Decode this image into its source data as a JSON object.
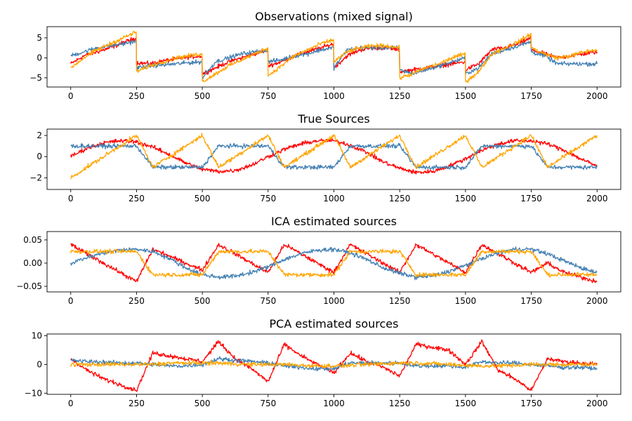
{
  "chart_data": [
    {
      "type": "line",
      "title": "Observations (mixed signal)",
      "xlim": [
        -90,
        2090
      ],
      "ylim": [
        -7.3,
        7.8
      ],
      "xticks": [
        0,
        250,
        500,
        750,
        1000,
        1250,
        1500,
        1750,
        2000
      ],
      "xtick_labels": [
        "0",
        "250",
        "500",
        "750",
        "1000",
        "1250",
        "1500",
        "1750",
        "2000"
      ],
      "yticks": [
        -5,
        0,
        5
      ],
      "ytick_labels": [
        "−5",
        "0",
        "5"
      ],
      "x": [
        0,
        50,
        100,
        150,
        200,
        249,
        250,
        300,
        350,
        400,
        450,
        499,
        500,
        550,
        600,
        650,
        700,
        749,
        750,
        800,
        850,
        900,
        950,
        999,
        1000,
        1050,
        1100,
        1150,
        1200,
        1249,
        1250,
        1300,
        1350,
        1400,
        1450,
        1499,
        1500,
        1550,
        1600,
        1650,
        1700,
        1749,
        1750,
        1800,
        1850,
        1900,
        1950,
        2000
      ],
      "series": [
        {
          "color": "#ff0000",
          "values": [
            -1.5,
            0.5,
            1.5,
            2.5,
            3.8,
            5.0,
            -1.2,
            -1.5,
            -0.8,
            -0.3,
            0.2,
            0.5,
            -4.0,
            -2.5,
            -1.0,
            0.0,
            1.0,
            2.0,
            -2.0,
            -1.0,
            0.5,
            1.5,
            2.5,
            3.5,
            -2.5,
            0.5,
            2.0,
            2.5,
            2.5,
            2.0,
            -3.5,
            -3.0,
            -2.5,
            -2.0,
            -1.5,
            -1.0,
            -3.0,
            -1.5,
            2.0,
            2.5,
            3.5,
            5.0,
            2.0,
            1.0,
            0.0,
            0.5,
            1.0,
            1.5
          ]
        },
        {
          "color": "#4682b4",
          "values": [
            0.5,
            1.5,
            2.5,
            3.0,
            3.5,
            4.2,
            -2.5,
            -2.0,
            -1.8,
            -1.5,
            -1.2,
            -1.0,
            -5.0,
            -1.0,
            0.0,
            1.0,
            1.5,
            2.0,
            -1.0,
            -0.5,
            0.5,
            1.0,
            2.0,
            2.5,
            -2.5,
            2.0,
            2.5,
            2.5,
            2.5,
            2.5,
            -3.0,
            -4.0,
            -3.0,
            -2.0,
            -1.0,
            0.0,
            -4.0,
            -2.5,
            1.0,
            2.0,
            3.0,
            4.0,
            1.5,
            0.5,
            -1.5,
            -1.5,
            -1.5,
            -1.5
          ]
        },
        {
          "color": "#ffa500",
          "values": [
            -2.5,
            0.0,
            2.0,
            3.5,
            5.0,
            6.5,
            -3.5,
            -2.0,
            -1.0,
            0.0,
            0.5,
            1.0,
            -6.0,
            -4.0,
            -2.0,
            -0.5,
            1.0,
            2.5,
            -4.5,
            -2.0,
            0.5,
            2.0,
            3.5,
            4.5,
            -1.0,
            1.5,
            2.5,
            3.0,
            3.0,
            2.5,
            -5.0,
            -4.0,
            -2.5,
            -1.5,
            0.0,
            1.0,
            -6.0,
            -3.5,
            1.0,
            2.5,
            4.0,
            6.0,
            2.5,
            1.0,
            0.0,
            0.5,
            1.5,
            2.0
          ]
        }
      ]
    },
    {
      "type": "line",
      "title": "True Sources",
      "xlim": [
        -90,
        2090
      ],
      "ylim": [
        -3.1,
        2.6
      ],
      "xticks": [
        0,
        250,
        500,
        750,
        1000,
        1250,
        1500,
        1750,
        2000
      ],
      "xtick_labels": [
        "0",
        "250",
        "500",
        "750",
        "1000",
        "1250",
        "1500",
        "1750",
        "2000"
      ],
      "yticks": [
        -2,
        0,
        2
      ],
      "ytick_labels": [
        "−2",
        "0",
        "2"
      ],
      "x": [
        0,
        62,
        125,
        187,
        250,
        312,
        375,
        437,
        500,
        562,
        625,
        687,
        750,
        812,
        875,
        937,
        1000,
        1062,
        1125,
        1187,
        1250,
        1312,
        1375,
        1437,
        1500,
        1562,
        1625,
        1687,
        1750,
        1812,
        1875,
        1937,
        2000
      ],
      "series": [
        {
          "color": "#ff0000",
          "values": [
            0.0,
            0.8,
            1.3,
            1.5,
            1.4,
            0.9,
            0.2,
            -0.6,
            -1.2,
            -1.4,
            -1.3,
            -0.8,
            0.0,
            0.7,
            1.2,
            1.5,
            1.5,
            1.1,
            0.4,
            -0.5,
            -1.1,
            -1.5,
            -1.4,
            -0.9,
            -0.2,
            0.6,
            1.2,
            1.5,
            1.5,
            1.2,
            0.6,
            -0.2,
            -0.9
          ]
        },
        {
          "color": "#4682b4",
          "values": [
            1.0,
            1.0,
            1.0,
            1.0,
            1.0,
            -1.0,
            -1.0,
            -1.0,
            -1.0,
            1.0,
            1.0,
            1.0,
            1.0,
            -1.0,
            -1.0,
            -1.0,
            -1.0,
            1.0,
            1.0,
            1.0,
            1.0,
            -1.0,
            -1.0,
            -1.0,
            -1.0,
            1.0,
            1.0,
            1.0,
            1.0,
            -1.0,
            -1.0,
            -1.0,
            -1.0
          ]
        },
        {
          "color": "#ffa500",
          "values": [
            -2.0,
            -1.0,
            0.0,
            1.0,
            2.0,
            -1.0,
            0.0,
            1.0,
            2.0,
            -1.0,
            0.0,
            1.0,
            2.0,
            -1.0,
            0.0,
            1.0,
            2.0,
            -1.0,
            0.0,
            1.0,
            2.0,
            -1.0,
            0.0,
            1.0,
            2.0,
            -1.0,
            0.0,
            1.0,
            2.0,
            -1.0,
            0.0,
            1.0,
            2.0
          ]
        }
      ]
    },
    {
      "type": "line",
      "title": "ICA estimated sources",
      "xlim": [
        -90,
        2090
      ],
      "ylim": [
        -0.062,
        0.068
      ],
      "xticks": [
        0,
        250,
        500,
        750,
        1000,
        1250,
        1500,
        1750,
        2000
      ],
      "xtick_labels": [
        "0",
        "250",
        "500",
        "750",
        "1000",
        "1250",
        "1500",
        "1750",
        "2000"
      ],
      "yticks": [
        -0.05,
        0.0,
        0.05
      ],
      "ytick_labels": [
        "−0.05",
        "0.00",
        "0.05"
      ],
      "x": [
        0,
        62,
        125,
        187,
        250,
        312,
        375,
        437,
        500,
        562,
        625,
        687,
        750,
        812,
        875,
        937,
        1000,
        1062,
        1125,
        1187,
        1250,
        1312,
        1375,
        1437,
        1500,
        1562,
        1625,
        1687,
        1750,
        1812,
        1875,
        1937,
        2000
      ],
      "series": [
        {
          "color": "#ff0000",
          "values": [
            0.04,
            0.02,
            0.0,
            -0.02,
            -0.04,
            0.03,
            0.015,
            0.0,
            -0.015,
            0.04,
            0.02,
            0.0,
            -0.02,
            0.04,
            0.02,
            0.0,
            -0.02,
            0.04,
            0.02,
            0.0,
            -0.02,
            0.04,
            0.02,
            0.0,
            -0.02,
            0.04,
            0.02,
            0.0,
            -0.02,
            0.0,
            -0.02,
            -0.03,
            -0.04
          ]
        },
        {
          "color": "#4682b4",
          "values": [
            0.0,
            0.012,
            0.022,
            0.028,
            0.03,
            0.025,
            0.01,
            -0.01,
            -0.025,
            -0.03,
            -0.028,
            -0.02,
            -0.008,
            0.008,
            0.02,
            0.028,
            0.03,
            0.022,
            0.008,
            -0.01,
            -0.022,
            -0.03,
            -0.028,
            -0.018,
            -0.005,
            0.01,
            0.022,
            0.03,
            0.03,
            0.02,
            0.005,
            -0.01,
            -0.02
          ]
        },
        {
          "color": "#ffa500",
          "values": [
            0.025,
            0.025,
            0.025,
            0.025,
            0.025,
            -0.025,
            -0.025,
            -0.025,
            -0.025,
            0.025,
            0.025,
            0.025,
            0.025,
            -0.025,
            -0.025,
            -0.025,
            -0.025,
            0.025,
            0.025,
            0.025,
            0.025,
            -0.025,
            -0.025,
            -0.025,
            -0.025,
            0.025,
            0.025,
            0.025,
            0.025,
            -0.025,
            -0.025,
            -0.025,
            -0.025
          ]
        }
      ]
    },
    {
      "type": "line",
      "title": "PCA estimated sources",
      "xlim": [
        -90,
        2090
      ],
      "ylim": [
        -10.4,
        10.6
      ],
      "xticks": [
        0,
        250,
        500,
        750,
        1000,
        1250,
        1500,
        1750,
        2000
      ],
      "xtick_labels": [
        "0",
        "250",
        "500",
        "750",
        "1000",
        "1250",
        "1500",
        "1750",
        "2000"
      ],
      "yticks": [
        -10,
        0,
        10
      ],
      "ytick_labels": [
        "−10",
        "0",
        "10"
      ],
      "x": [
        0,
        62,
        125,
        187,
        250,
        312,
        375,
        437,
        500,
        562,
        625,
        687,
        750,
        812,
        875,
        937,
        1000,
        1062,
        1125,
        1187,
        1250,
        1312,
        1375,
        1437,
        1500,
        1562,
        1625,
        1687,
        1750,
        1812,
        1875,
        1937,
        2000
      ],
      "series": [
        {
          "color": "#ff0000",
          "values": [
            2.0,
            -2.0,
            -5.0,
            -7.0,
            -9.0,
            4.0,
            3.0,
            2.0,
            1.0,
            8.0,
            2.0,
            -1.5,
            -6.0,
            7.0,
            3.0,
            0.0,
            -3.0,
            4.0,
            1.0,
            -1.0,
            -4.0,
            7.0,
            6.0,
            5.0,
            0.0,
            8.0,
            -2.0,
            -5.0,
            -9.0,
            2.0,
            1.0,
            0.5,
            0.0
          ]
        },
        {
          "color": "#4682b4",
          "values": [
            1.5,
            1.0,
            0.8,
            0.5,
            0.5,
            0.0,
            -0.5,
            -0.5,
            0.0,
            2.0,
            1.5,
            1.0,
            0.5,
            -0.5,
            -1.0,
            -1.5,
            -1.5,
            0.5,
            0.5,
            0.5,
            0.5,
            -0.5,
            -0.5,
            -0.5,
            -1.0,
            1.0,
            0.5,
            0.5,
            0.0,
            -0.5,
            -1.0,
            -1.0,
            -1.5
          ]
        },
        {
          "color": "#ffa500",
          "values": [
            0.0,
            0.0,
            0.0,
            0.0,
            0.0,
            0.0,
            0.5,
            0.5,
            0.5,
            0.5,
            0.2,
            0.0,
            0.0,
            0.0,
            -0.3,
            -0.5,
            -0.5,
            -0.3,
            0.0,
            0.3,
            0.5,
            0.5,
            0.3,
            0.0,
            -0.3,
            -0.5,
            -0.5,
            -0.3,
            0.0,
            0.0,
            0.0,
            0.0,
            0.0
          ]
        }
      ]
    }
  ]
}
